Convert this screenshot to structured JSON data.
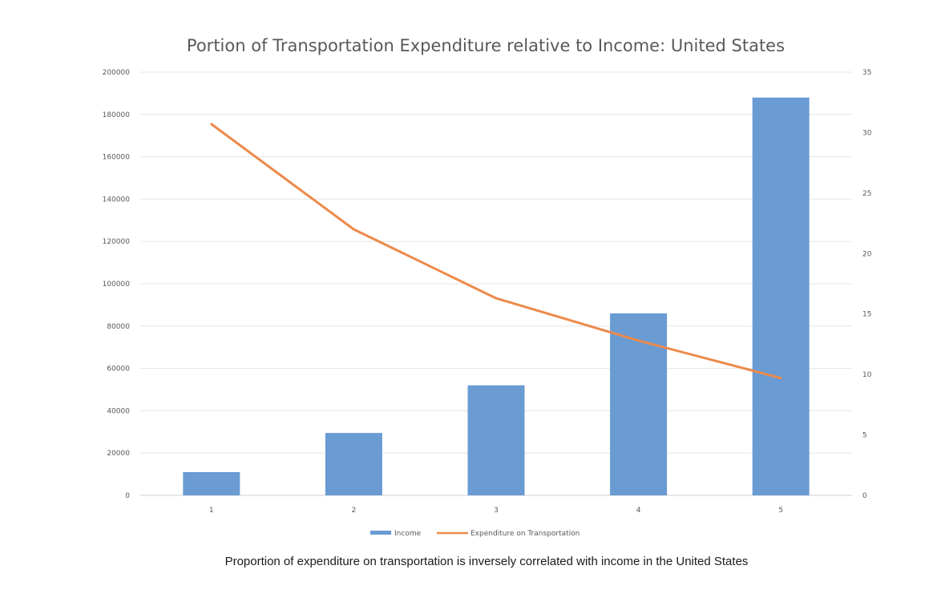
{
  "chart_data": {
    "type": "bar",
    "title": "Portion of Transportation Expenditure relative to Income: United States",
    "categories": [
      "1",
      "2",
      "3",
      "4",
      "5"
    ],
    "series": [
      {
        "name": "Income",
        "type": "bar",
        "axis": "left",
        "color": "#6a9bd3",
        "values": [
          11000,
          29500,
          52000,
          86000,
          188000
        ]
      },
      {
        "name": "Expenditure on Transportation",
        "type": "line",
        "axis": "right",
        "color": "#ed8a4b",
        "values": [
          30.7,
          22,
          16.3,
          12.8,
          9.7
        ]
      }
    ],
    "y_left": {
      "min": 0,
      "max": 200000,
      "step": 20000,
      "ticks": [
        "0",
        "20000",
        "40000",
        "60000",
        "80000",
        "100000",
        "120000",
        "140000",
        "160000",
        "180000",
        "200000"
      ]
    },
    "y_right": {
      "min": 0,
      "max": 35,
      "step": 5,
      "ticks": [
        "0",
        "5",
        "10",
        "15",
        "20",
        "25",
        "30",
        "35"
      ]
    },
    "grid": true,
    "legend": "bottom",
    "xlabel": "",
    "ylabel": ""
  },
  "caption": "Proportion of expenditure on transportation is inversely correlated with income in the United States"
}
